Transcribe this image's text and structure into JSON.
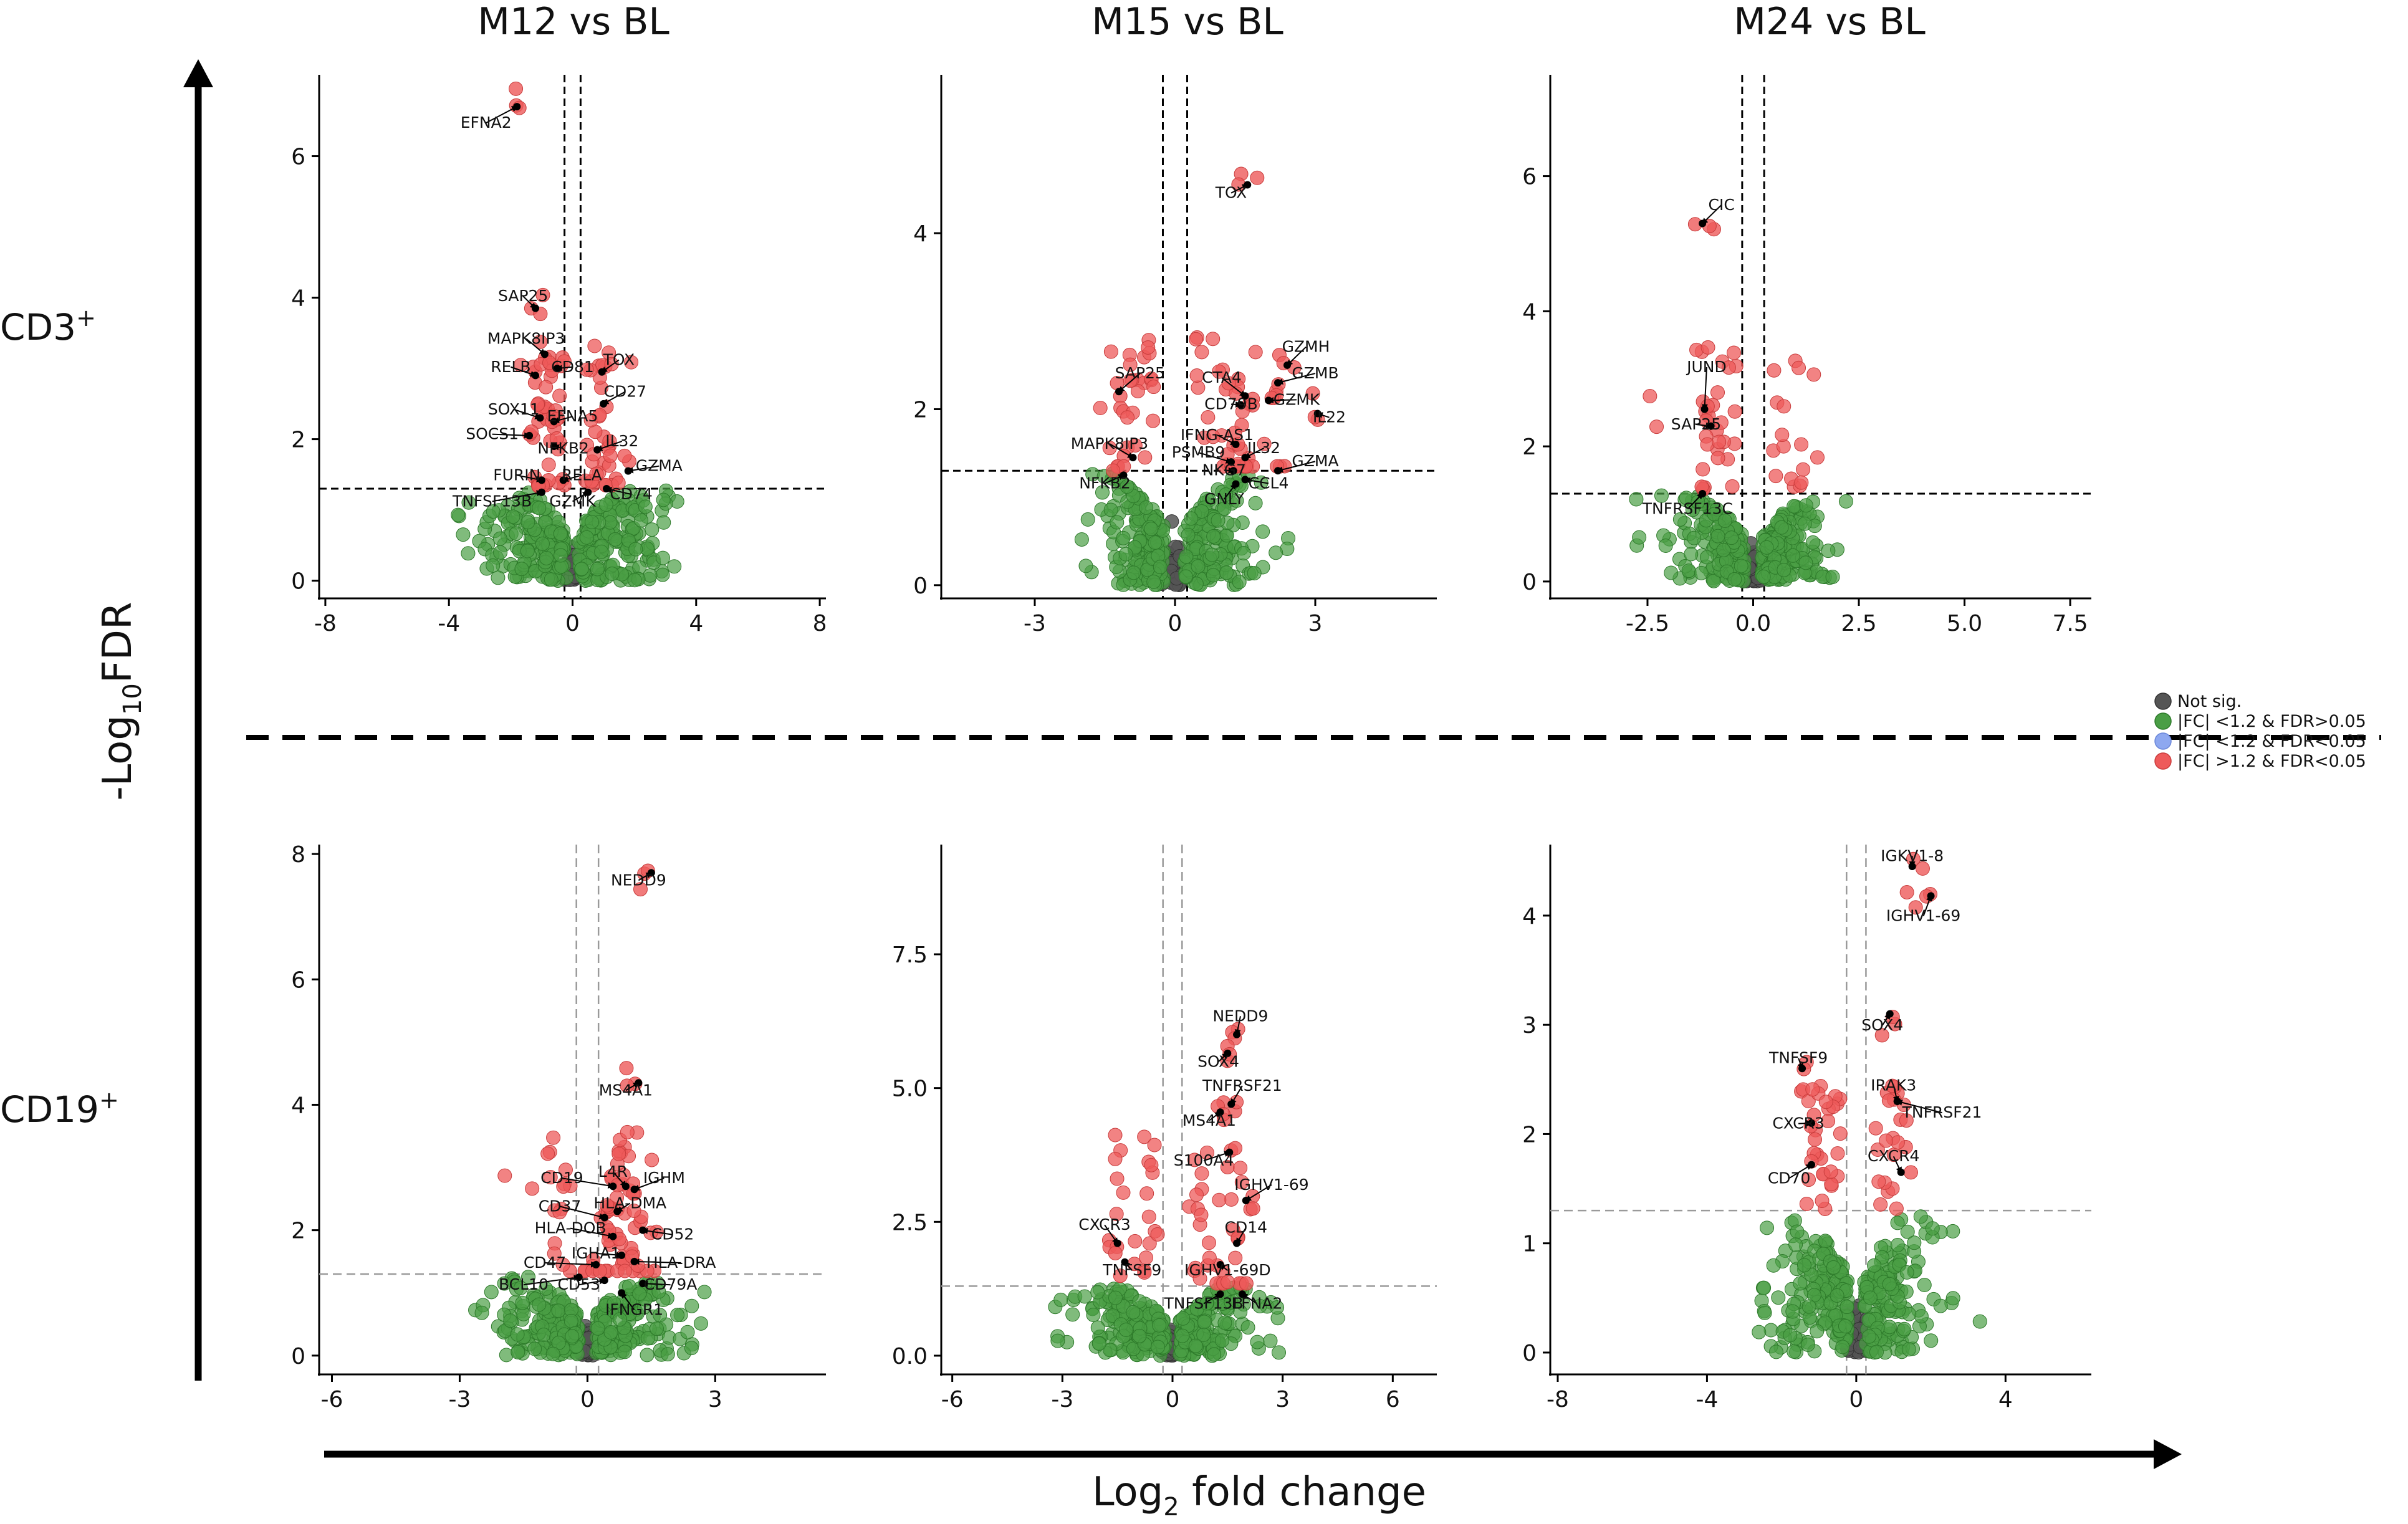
{
  "chart_data": {
    "type": "scatter",
    "subtype": "volcano",
    "column_titles": [
      "M12 vs BL",
      "M15 vs BL",
      "M24 vs BL"
    ],
    "row_labels": [
      {
        "base": "CD3",
        "sup": "+"
      },
      {
        "base": "CD19",
        "sup": "+"
      }
    ],
    "xlabel": {
      "base": "Log",
      "sub": "2",
      "rest": " fold change"
    },
    "ylabel": {
      "base": "-Log",
      "sub": "10",
      "rest": "FDR"
    },
    "legend": {
      "position": "right",
      "entries": [
        {
          "label": "Not sig.",
          "color": "#555555"
        },
        {
          "label": "|FC| <1.2 & FDR>0.05",
          "color": "#4a9e45"
        },
        {
          "label": "|FC| <1.2 & FDR<0.05",
          "color": "#8ea8f0"
        },
        {
          "label": "|FC| >1.2 & FDR<0.05",
          "color": "#ee5a5a"
        }
      ]
    },
    "panels": [
      {
        "id": "cd3-m12",
        "row": 0,
        "col": 0,
        "xlim": [
          -8.2,
          8.2
        ],
        "ylim": [
          -0.25,
          7.15
        ],
        "xticks": [
          -8,
          -4,
          0,
          4,
          8
        ],
        "xtick_labels": [
          "-8",
          "-4",
          "0",
          "4",
          "8"
        ],
        "yticks": [
          0,
          2,
          4,
          6
        ],
        "ytick_labels": [
          "0",
          "2",
          "4",
          "6"
        ],
        "fc_cut": 0.26,
        "fdr_cut": 1.3,
        "threshold_style": "black",
        "labels": [
          {
            "t": "EFNA2",
            "x": -2.8,
            "y": 6.4,
            "px": -1.8,
            "py": 6.7
          },
          {
            "t": "SAP25",
            "x": -1.6,
            "y": 3.95,
            "px": -1.2,
            "py": 3.85
          },
          {
            "t": "MAPK8IP3",
            "x": -1.5,
            "y": 3.35,
            "px": -0.9,
            "py": 3.2
          },
          {
            "t": "RELB",
            "x": -2.0,
            "y": 2.95,
            "px": -1.2,
            "py": 2.9
          },
          {
            "t": "CD81",
            "x": 0.0,
            "y": 2.95,
            "px": -0.5,
            "py": 3.0
          },
          {
            "t": "TOX",
            "x": 1.5,
            "y": 3.05,
            "px": 0.95,
            "py": 2.95
          },
          {
            "t": "CD27",
            "x": 1.7,
            "y": 2.6,
            "px": 1.0,
            "py": 2.5
          },
          {
            "t": "SOX11",
            "x": -1.9,
            "y": 2.35,
            "px": -1.05,
            "py": 2.3
          },
          {
            "t": "EFNA5",
            "x": 0.0,
            "y": 2.25,
            "px": -0.6,
            "py": 2.25
          },
          {
            "t": "SOCS1",
            "x": -2.6,
            "y": 2.0,
            "px": -1.4,
            "py": 2.05
          },
          {
            "t": "NFKB2",
            "x": -0.3,
            "y": 1.8,
            "px": -0.6,
            "py": 1.9
          },
          {
            "t": "IL32",
            "x": 1.6,
            "y": 1.9,
            "px": 0.8,
            "py": 1.85
          },
          {
            "t": "GZMA",
            "x": 2.8,
            "y": 1.55,
            "px": 1.8,
            "py": 1.55
          },
          {
            "t": "FURIN",
            "x": -1.8,
            "y": 1.42,
            "px": -1.0,
            "py": 1.42
          },
          {
            "t": "RELA",
            "x": 0.3,
            "y": 1.42,
            "px": -0.3,
            "py": 1.42
          },
          {
            "t": "CD74",
            "x": 1.9,
            "y": 1.15,
            "px": 1.1,
            "py": 1.3
          },
          {
            "t": "TNFSF13B",
            "x": -2.6,
            "y": 1.05,
            "px": -1.0,
            "py": 1.25
          },
          {
            "t": "GZMK",
            "x": 0.0,
            "y": 1.05,
            "px": 0.5,
            "py": 1.25
          }
        ]
      },
      {
        "id": "cd3-m15",
        "row": 0,
        "col": 1,
        "xlim": [
          -5.0,
          5.6
        ],
        "ylim": [
          -0.15,
          5.8
        ],
        "xticks": [
          -3,
          0,
          3
        ],
        "xtick_labels": [
          "-3",
          "0",
          "3"
        ],
        "yticks": [
          0,
          2,
          4
        ],
        "ytick_labels": [
          "0",
          "2",
          "4"
        ],
        "fc_cut": 0.26,
        "fdr_cut": 1.3,
        "threshold_style": "black",
        "labels": [
          {
            "t": "TOX",
            "x": 1.2,
            "y": 4.4,
            "px": 1.55,
            "py": 4.55
          },
          {
            "t": "GZMH",
            "x": 2.8,
            "y": 2.65,
            "px": 2.4,
            "py": 2.5
          },
          {
            "t": "GZMB",
            "x": 3.0,
            "y": 2.35,
            "px": 2.2,
            "py": 2.3
          },
          {
            "t": "SAP25",
            "x": -0.75,
            "y": 2.35,
            "px": -1.2,
            "py": 2.2
          },
          {
            "t": "CTA4",
            "x": 1.0,
            "y": 2.3,
            "px": 1.5,
            "py": 2.15
          },
          {
            "t": "GZMK",
            "x": 2.6,
            "y": 2.05,
            "px": 2.0,
            "py": 2.1
          },
          {
            "t": "CD79B",
            "x": 1.2,
            "y": 2.0,
            "px": 1.4,
            "py": 2.05
          },
          {
            "t": "IL22",
            "x": 3.3,
            "y": 1.85,
            "px": 3.05,
            "py": 1.95
          },
          {
            "t": "IFNG-AS1",
            "x": 0.9,
            "y": 1.65,
            "px": 1.3,
            "py": 1.6
          },
          {
            "t": "MAPK8IP3",
            "x": -1.4,
            "y": 1.55,
            "px": -0.9,
            "py": 1.45
          },
          {
            "t": "IL32",
            "x": 1.9,
            "y": 1.5,
            "px": 1.5,
            "py": 1.45
          },
          {
            "t": "PSMB9",
            "x": 0.5,
            "y": 1.45,
            "px": 1.2,
            "py": 1.4
          },
          {
            "t": "GZMA",
            "x": 3.0,
            "y": 1.35,
            "px": 2.2,
            "py": 1.3
          },
          {
            "t": "NKG7",
            "x": 1.05,
            "y": 1.25,
            "px": 1.25,
            "py": 1.3
          },
          {
            "t": "NFKB2",
            "x": -1.5,
            "y": 1.1,
            "px": -1.1,
            "py": 1.25
          },
          {
            "t": "CCL4",
            "x": 2.0,
            "y": 1.1,
            "px": 1.5,
            "py": 1.2
          },
          {
            "t": "GNLY",
            "x": 1.05,
            "y": 0.92,
            "px": 1.3,
            "py": 1.15
          }
        ]
      },
      {
        "id": "cd3-m24",
        "row": 0,
        "col": 2,
        "xlim": [
          -4.8,
          8.0
        ],
        "ylim": [
          -0.25,
          7.5
        ],
        "xticks": [
          -2.5,
          0,
          2.5,
          5,
          7.5
        ],
        "xtick_labels": [
          "-2.5",
          "0.0",
          "2.5",
          "5.0",
          "7.5"
        ],
        "yticks": [
          0,
          2,
          4,
          6
        ],
        "ytick_labels": [
          "0",
          "2",
          "4",
          "6"
        ],
        "fc_cut": 0.26,
        "fdr_cut": 1.3,
        "threshold_style": "black",
        "labels": [
          {
            "t": "CIC",
            "x": -0.75,
            "y": 5.5,
            "px": -1.2,
            "py": 5.3
          },
          {
            "t": "JUND",
            "x": -1.1,
            "y": 3.1,
            "px": -1.15,
            "py": 2.55
          },
          {
            "t": "SAP25",
            "x": -1.35,
            "y": 2.25,
            "px": -1.0,
            "py": 2.3
          },
          {
            "t": "TNFRSF13C",
            "x": -1.55,
            "y": 1.0,
            "px": -1.2,
            "py": 1.3
          }
        ]
      },
      {
        "id": "cd19-m12",
        "row": 1,
        "col": 0,
        "xlim": [
          -6.3,
          5.6
        ],
        "ylim": [
          -0.3,
          8.15
        ],
        "xticks": [
          -6,
          -3,
          0,
          3
        ],
        "xtick_labels": [
          "-6",
          "-3",
          "0",
          "3"
        ],
        "yticks": [
          0,
          2,
          4,
          6,
          8
        ],
        "ytick_labels": [
          "0",
          "2",
          "4",
          "6",
          "8"
        ],
        "fc_cut": 0.26,
        "fdr_cut": 1.3,
        "threshold_style": "gray",
        "labels": [
          {
            "t": "NEDD9",
            "x": 1.2,
            "y": 7.5,
            "px": 1.5,
            "py": 7.7
          },
          {
            "t": "MS4A1",
            "x": 0.9,
            "y": 4.15,
            "px": 1.2,
            "py": 4.35
          },
          {
            "t": "CD19",
            "x": -0.6,
            "y": 2.75,
            "px": 0.6,
            "py": 2.7
          },
          {
            "t": "L4R",
            "x": 0.6,
            "y": 2.85,
            "px": 0.9,
            "py": 2.7
          },
          {
            "t": "IGHM",
            "x": 1.8,
            "y": 2.75,
            "px": 1.1,
            "py": 2.65
          },
          {
            "t": "CD37",
            "x": -0.65,
            "y": 2.3,
            "px": 0.4,
            "py": 2.2
          },
          {
            "t": "HLA-DMA",
            "x": 1.0,
            "y": 2.35,
            "px": 0.7,
            "py": 2.3
          },
          {
            "t": "CD52",
            "x": 2.0,
            "y": 1.85,
            "px": 1.3,
            "py": 2.0
          },
          {
            "t": "HLA-DOB",
            "x": -0.4,
            "y": 1.95,
            "px": 0.6,
            "py": 1.9
          },
          {
            "t": "IGHA1",
            "x": 0.2,
            "y": 1.55,
            "px": 0.8,
            "py": 1.6
          },
          {
            "t": "CD47",
            "x": -1.0,
            "y": 1.4,
            "px": 0.2,
            "py": 1.45
          },
          {
            "t": "HLA-DRA",
            "x": 2.2,
            "y": 1.4,
            "px": 1.1,
            "py": 1.5
          },
          {
            "t": "BCL10",
            "x": -1.5,
            "y": 1.05,
            "px": -0.2,
            "py": 1.25
          },
          {
            "t": "CD53",
            "x": -0.2,
            "y": 1.05,
            "px": 0.4,
            "py": 1.2
          },
          {
            "t": "CD79A",
            "x": 1.95,
            "y": 1.05,
            "px": 1.3,
            "py": 1.15
          },
          {
            "t": "IFNGR1",
            "x": 1.1,
            "y": 0.65,
            "px": 0.8,
            "py": 1.0
          }
        ]
      },
      {
        "id": "cd19-m15",
        "row": 1,
        "col": 1,
        "xlim": [
          -6.3,
          7.2
        ],
        "ylim": [
          -0.35,
          9.55
        ],
        "xticks": [
          -6,
          -3,
          0,
          3,
          6
        ],
        "xtick_labels": [
          "-6",
          "-3",
          "0",
          "3",
          "6"
        ],
        "yticks": [
          0,
          2.5,
          5,
          7.5
        ],
        "ytick_labels": [
          "0.0",
          "2.5",
          "5.0",
          "7.5"
        ],
        "fc_cut": 0.26,
        "fdr_cut": 1.3,
        "threshold_style": "gray",
        "labels": [
          {
            "t": "NEDD9",
            "x": 1.85,
            "y": 6.25,
            "px": 1.75,
            "py": 6.0
          },
          {
            "t": "SOX4",
            "x": 1.25,
            "y": 5.4,
            "px": 1.5,
            "py": 5.65
          },
          {
            "t": "TNFRSF21",
            "x": 1.9,
            "y": 4.95,
            "px": 1.6,
            "py": 4.7
          },
          {
            "t": "MS4A1",
            "x": 1.0,
            "y": 4.3,
            "px": 1.3,
            "py": 4.55
          },
          {
            "t": "S100A4",
            "x": 0.85,
            "y": 3.55,
            "px": 1.55,
            "py": 3.8
          },
          {
            "t": "IGHV1-69",
            "x": 2.7,
            "y": 3.1,
            "px": 2.0,
            "py": 2.9
          },
          {
            "t": "CXCR3",
            "x": -1.85,
            "y": 2.35,
            "px": -1.5,
            "py": 2.1
          },
          {
            "t": "CD14",
            "x": 2.0,
            "y": 2.3,
            "px": 1.75,
            "py": 2.1
          },
          {
            "t": "IGHV1-69D",
            "x": 1.5,
            "y": 1.5,
            "px": 1.3,
            "py": 1.7
          },
          {
            "t": "TNFSF9",
            "x": -1.1,
            "y": 1.5,
            "px": -1.3,
            "py": 1.75
          },
          {
            "t": "TNFSF13B",
            "x": 0.85,
            "y": 0.88,
            "px": 1.3,
            "py": 1.15
          },
          {
            "t": "EFNA2",
            "x": 2.3,
            "y": 0.88,
            "px": 1.9,
            "py": 1.15
          }
        ]
      },
      {
        "id": "cd19-m24",
        "row": 1,
        "col": 2,
        "xlim": [
          -8.2,
          6.3
        ],
        "ylim": [
          -0.2,
          4.65
        ],
        "xticks": [
          -8,
          -4,
          0,
          4
        ],
        "xtick_labels": [
          "-8",
          "-4",
          "0",
          "4"
        ],
        "yticks": [
          0,
          1,
          2,
          3,
          4
        ],
        "ytick_labels": [
          "0",
          "1",
          "2",
          "3",
          "4"
        ],
        "fc_cut": 0.26,
        "fdr_cut": 1.3,
        "threshold_style": "gray",
        "labels": [
          {
            "t": "IGKV1-8",
            "x": 1.5,
            "y": 4.5,
            "px": 1.5,
            "py": 4.45
          },
          {
            "t": "IGHV1-69",
            "x": 1.8,
            "y": 3.95,
            "px": 2.0,
            "py": 4.18
          },
          {
            "t": "SOX4",
            "x": 0.7,
            "y": 2.95,
            "px": 0.9,
            "py": 3.1
          },
          {
            "t": "TNFSF9",
            "x": -1.55,
            "y": 2.65,
            "px": -1.45,
            "py": 2.6
          },
          {
            "t": "IRAK3",
            "x": 1.0,
            "y": 2.4,
            "px": 1.1,
            "py": 2.3
          },
          {
            "t": "TNFRSF21",
            "x": 2.3,
            "y": 2.15,
            "px": 1.1,
            "py": 2.3
          },
          {
            "t": "CXCR3",
            "x": -1.55,
            "y": 2.05,
            "px": -1.2,
            "py": 2.1
          },
          {
            "t": "CXCR4",
            "x": 1.0,
            "y": 1.75,
            "px": 1.2,
            "py": 1.65
          },
          {
            "t": "CD70",
            "x": -1.8,
            "y": 1.55,
            "px": -1.2,
            "py": 1.72
          }
        ]
      }
    ]
  }
}
